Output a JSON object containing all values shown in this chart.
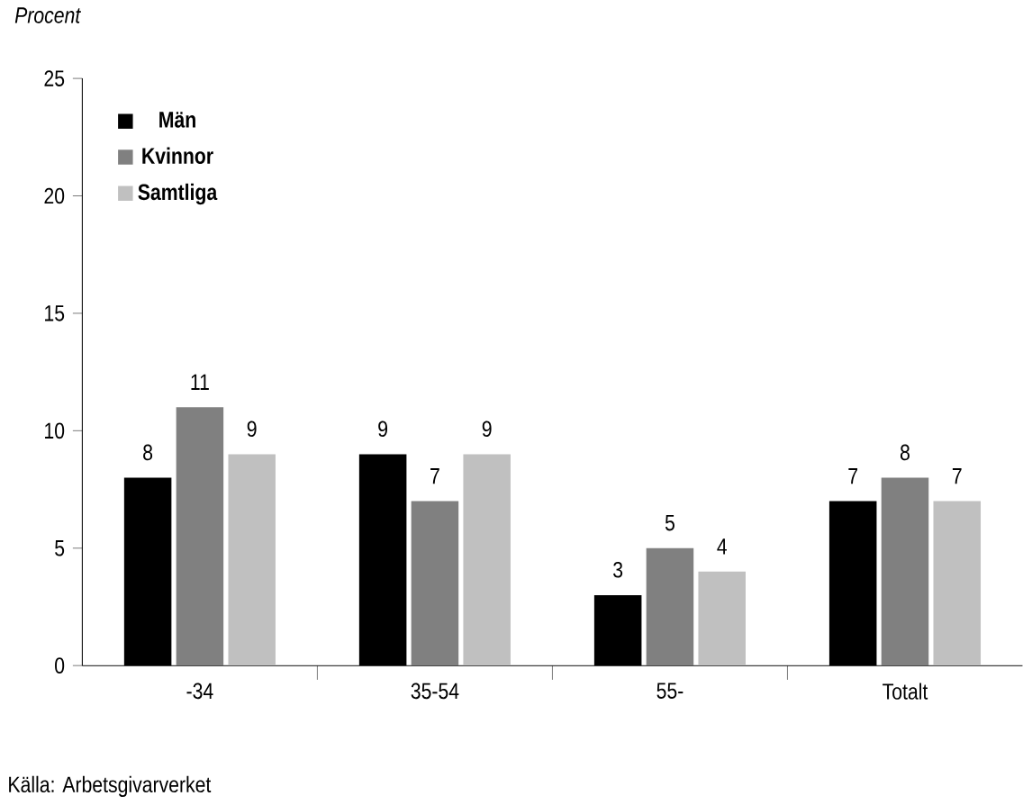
{
  "chart_data": {
    "type": "bar",
    "title": "Procent",
    "categories": [
      "-34",
      "35-54",
      "55-",
      "Totalt"
    ],
    "series": [
      {
        "name": "Män",
        "color": "#000000",
        "values": [
          8,
          9,
          3,
          7
        ]
      },
      {
        "name": "Kvinnor",
        "color": "#808080",
        "values": [
          11,
          7,
          5,
          8
        ]
      },
      {
        "name": "Samtliga",
        "color": "#c0c0c0",
        "values": [
          9,
          9,
          4,
          7
        ]
      }
    ],
    "ylim": [
      0,
      25
    ],
    "yticks": [
      0,
      5,
      10,
      15,
      20,
      25
    ],
    "data_labels": true,
    "legend": "top left",
    "annotations": [
      "Källa: Arbetsgivarverket"
    ]
  }
}
